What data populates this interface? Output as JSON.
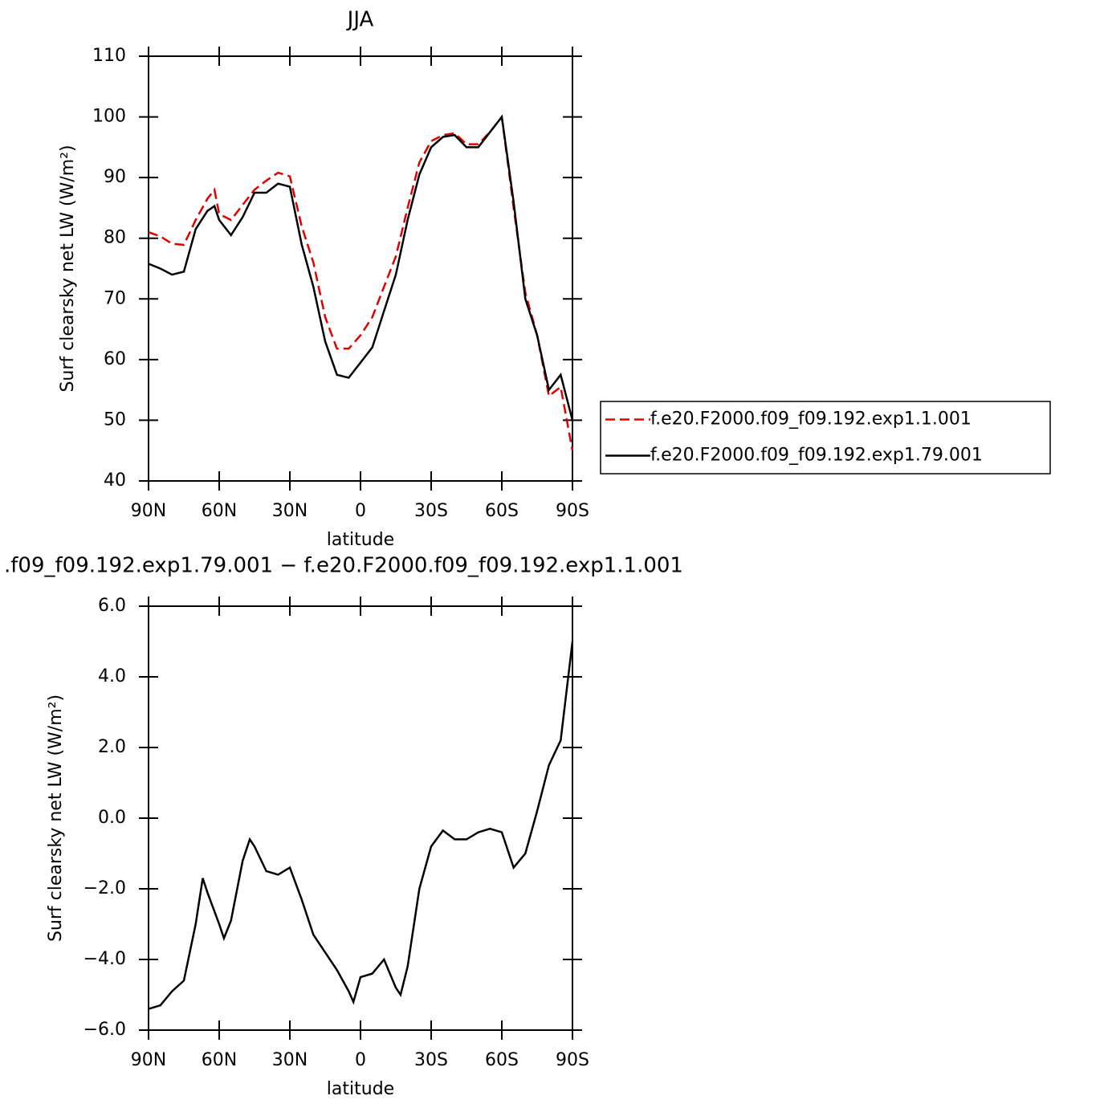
{
  "chart_data": [
    {
      "type": "line",
      "title": "JJA",
      "xlabel": "latitude",
      "ylabel": "Surf clearsky net LW (W/m²)",
      "x": [
        90,
        85,
        80,
        75,
        70,
        65,
        62,
        60,
        55,
        50,
        45,
        40,
        35,
        30,
        25,
        20,
        15,
        10,
        5,
        0,
        -5,
        -10,
        -15,
        -20,
        -25,
        -30,
        -35,
        -40,
        -45,
        -50,
        -55,
        -60,
        -65,
        -70,
        -75,
        -80,
        -85,
        -90
      ],
      "series": [
        {
          "name": "f.e20.F2000.f09_f09.192.exp1.1.001",
          "color": "#e00000",
          "line_style": "dashed",
          "values": [
            81,
            80.3,
            79.1,
            78.9,
            83,
            86.5,
            88,
            84,
            83,
            85.5,
            88,
            89.5,
            90.8,
            90.2,
            82,
            76,
            67,
            61.8,
            61.8,
            64,
            67,
            72,
            77,
            85,
            92.5,
            96,
            97,
            97.3,
            95.5,
            95.5,
            97.5,
            100,
            85,
            71,
            64,
            54,
            55.5,
            45
          ]
        },
        {
          "name": "f.e20.F2000.f09_f09.192.exp1.79.001",
          "color": "#000000",
          "line_style": "solid",
          "values": [
            75.8,
            75,
            74,
            74.5,
            81.5,
            84.5,
            85.3,
            83,
            80.5,
            83.5,
            87.5,
            87.5,
            89,
            88.5,
            79,
            72,
            63,
            57.5,
            57,
            59.5,
            62,
            68,
            74,
            83,
            90.5,
            95,
            96.7,
            97,
            95,
            95,
            97.5,
            100,
            86,
            70,
            64,
            55,
            57.5,
            50
          ]
        }
      ],
      "xlim": [
        90,
        -90
      ],
      "xticks": [
        {
          "value": 90,
          "label": "90N"
        },
        {
          "value": 60,
          "label": "60N"
        },
        {
          "value": 30,
          "label": "30N"
        },
        0,
        {
          "value": -30,
          "label": "30S"
        },
        {
          "value": -60,
          "label": "60S"
        },
        {
          "value": -90,
          "label": "90S"
        }
      ],
      "ylim": [
        40,
        110
      ],
      "yticks": [
        40,
        50,
        60,
        70,
        80,
        90,
        100,
        110
      ],
      "legend": "outside-right"
    },
    {
      "type": "line",
      "title": ".f09_f09.192.exp1.79.001 − f.e20.F2000.f09_f09.192.exp1.1.001",
      "xlabel": "latitude",
      "ylabel": "Surf clearsky net LW (W/m²)",
      "x": [
        90,
        85,
        80,
        75,
        70,
        67,
        65,
        60,
        58,
        55,
        50,
        47,
        45,
        40,
        35,
        30,
        25,
        20,
        15,
        10,
        5,
        3,
        0,
        -5,
        -10,
        -15,
        -17,
        -20,
        -25,
        -30,
        -35,
        -40,
        -45,
        -50,
        -55,
        -60,
        -65,
        -70,
        -75,
        -80,
        -85,
        -90
      ],
      "series": [
        {
          "color": "#000000",
          "line_style": "solid",
          "values": [
            -5.4,
            -5.3,
            -4.9,
            -4.6,
            -3.0,
            -1.7,
            -2.1,
            -3.0,
            -3.4,
            -2.9,
            -1.2,
            -0.6,
            -0.8,
            -1.5,
            -1.6,
            -1.4,
            -2.3,
            -3.3,
            -3.8,
            -4.3,
            -4.9,
            -5.2,
            -4.5,
            -4.4,
            -4.0,
            -4.8,
            -5.0,
            -4.2,
            -2.0,
            -0.8,
            -0.35,
            -0.6,
            -0.6,
            -0.4,
            -0.3,
            -0.4,
            -1.4,
            -1.0,
            0.2,
            1.5,
            2.2,
            5.0
          ]
        }
      ],
      "xlim": [
        90,
        -90
      ],
      "xticks": [
        {
          "value": 90,
          "label": "90N"
        },
        {
          "value": 60,
          "label": "60N"
        },
        {
          "value": 30,
          "label": "30N"
        },
        0,
        {
          "value": -30,
          "label": "30S"
        },
        {
          "value": -60,
          "label": "60S"
        },
        {
          "value": -90,
          "label": "90S"
        }
      ],
      "ylim": [
        -6,
        6
      ],
      "yticks": [
        {
          "value": -6,
          "label": "−6.0"
        },
        {
          "value": -4,
          "label": "−4.0"
        },
        {
          "value": -2,
          "label": "−2.0"
        },
        {
          "value": 0,
          "label": "0.0"
        },
        {
          "value": 2,
          "label": "2.0"
        },
        {
          "value": 4,
          "label": "4.0"
        },
        {
          "value": 6,
          "label": "6.0"
        }
      ]
    }
  ]
}
